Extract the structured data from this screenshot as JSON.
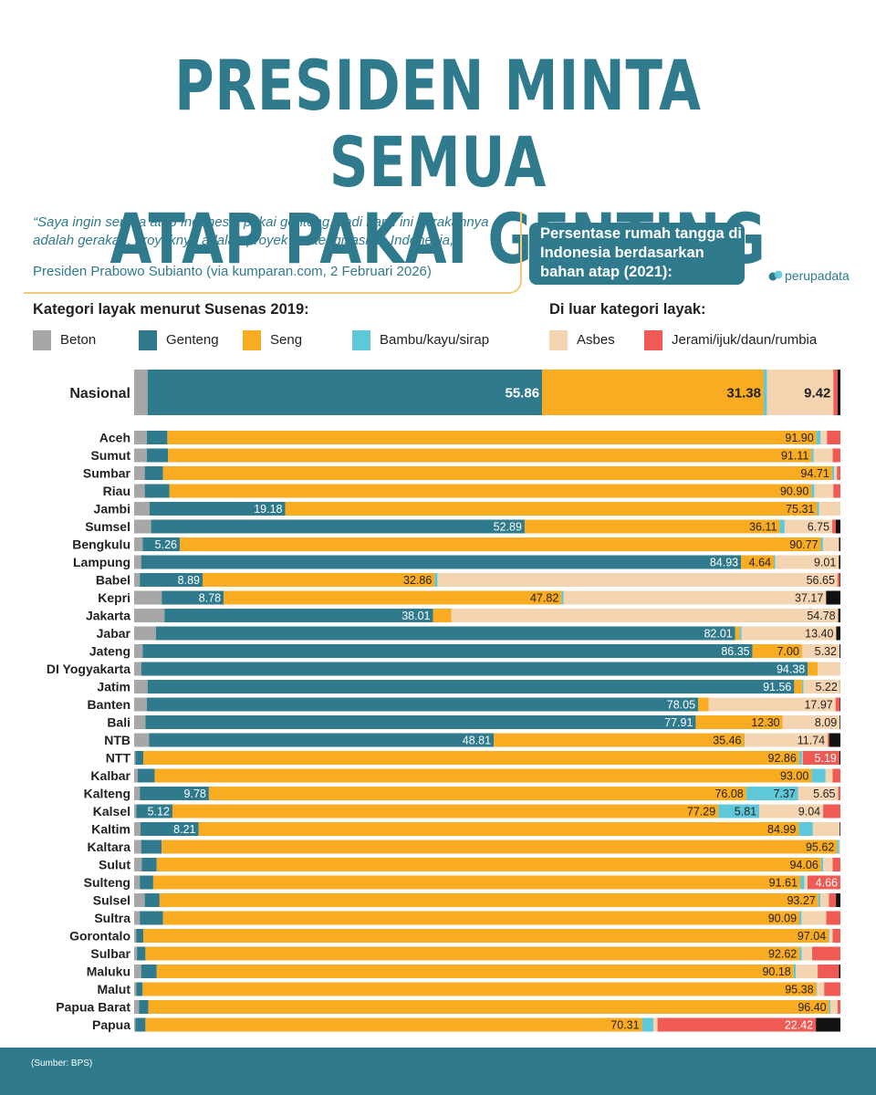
{
  "title_line1": "PRESIDEN MINTA SEMUA",
  "title_line2": "ATAP PAKAI GENTING",
  "quote": "“Saya ingin semua atap Indonesia pakai genteng. Jadi nanti ini gerakannya adalah gerakan, proyeknya adalah proyek gentengisasi ke Indonesia,”",
  "cite": "Presiden Prabowo Subianto (via kumparan.com, 2 Februari 2026)",
  "subtitle": "Persentase rumah tangga di Indonesia berdasarkan bahan atap (2021):",
  "logo": "perupadata",
  "source": "(Sumber: BPS)",
  "legend": {
    "layak_title": "Kategori layak menurut Susenas 2019:",
    "luar_title": "Di luar kategori layak:"
  },
  "colors": {
    "beton": "#a7a7a7",
    "genteng": "#2f7a8c",
    "seng": "#f9ab21",
    "bambu": "#5ec8d8",
    "asbes": "#f5d5b1",
    "jerami": "#ef5a55",
    "lainnya": "#111111",
    "brand": "#2f7a8c"
  },
  "chart_data": {
    "type": "bar",
    "stacked": true,
    "orientation": "horizontal",
    "title": "Persentase rumah tangga di Indonesia berdasarkan bahan atap (2021)",
    "xlim": [
      0,
      100
    ],
    "legend_position": "top",
    "series": [
      {
        "key": "beton",
        "name": "Beton"
      },
      {
        "key": "genteng",
        "name": "Genteng"
      },
      {
        "key": "seng",
        "name": "Seng"
      },
      {
        "key": "bambu",
        "name": "Bambu/kayu/sirap"
      },
      {
        "key": "asbes",
        "name": "Asbes"
      },
      {
        "key": "jerami",
        "name": "Jerami/ijuk/daun/rumbia"
      },
      {
        "key": "lainnya",
        "name": ""
      }
    ],
    "national": {
      "name": "Nasional",
      "values": [
        1.9,
        55.86,
        31.38,
        0.45,
        9.42,
        0.6,
        0.39
      ],
      "labels": [
        "",
        "55.86",
        "31.38",
        "",
        "9.42",
        "",
        ""
      ]
    },
    "provinces": [
      {
        "name": "Aceh",
        "values": [
          1.8,
          2.9,
          91.9,
          0.6,
          0.9,
          1.9,
          0
        ],
        "labels": [
          "",
          "",
          "91.90",
          "",
          "",
          "",
          ""
        ]
      },
      {
        "name": "Sumut",
        "values": [
          1.8,
          3.0,
          91.11,
          0.3,
          2.7,
          1.09,
          0
        ],
        "labels": [
          "",
          "",
          "91.11",
          "",
          "",
          "",
          ""
        ]
      },
      {
        "name": "Sumbar",
        "values": [
          1.5,
          2.6,
          94.71,
          0.3,
          0.4,
          0.49,
          0
        ],
        "labels": [
          "",
          "",
          "94.71",
          "",
          "",
          "",
          ""
        ]
      },
      {
        "name": "Riau",
        "values": [
          1.5,
          3.5,
          90.9,
          0.4,
          2.7,
          1.0,
          0
        ],
        "labels": [
          "",
          "",
          "90.90",
          "",
          "",
          "",
          ""
        ]
      },
      {
        "name": "Jambi",
        "values": [
          2.2,
          19.18,
          75.31,
          0.3,
          3.01,
          0,
          0
        ],
        "labels": [
          "",
          "19.18",
          "75.31",
          "",
          "",
          "",
          ""
        ]
      },
      {
        "name": "Sumsel",
        "values": [
          2.4,
          52.89,
          36.11,
          0.7,
          6.75,
          0.5,
          0.65
        ],
        "labels": [
          "",
          "52.89",
          "36.11",
          "",
          "6.75",
          "",
          ""
        ]
      },
      {
        "name": "Bengkulu",
        "values": [
          1.2,
          5.26,
          90.77,
          0.3,
          2.27,
          0,
          0.2
        ],
        "labels": [
          "",
          "5.26",
          "90.77",
          "",
          "",
          "",
          ""
        ]
      },
      {
        "name": "Lampung",
        "values": [
          1.0,
          84.93,
          4.64,
          0.2,
          9.01,
          0,
          0.22
        ],
        "labels": [
          "",
          "84.93",
          "4.64",
          "",
          "9.01",
          "",
          ""
        ]
      },
      {
        "name": "Babel",
        "values": [
          0.8,
          8.89,
          32.86,
          0.4,
          56.65,
          0.3,
          0.1
        ],
        "labels": [
          "",
          "8.89",
          "32.86",
          "",
          "56.65",
          "",
          ""
        ]
      },
      {
        "name": "Kepri",
        "values": [
          3.9,
          8.78,
          47.82,
          0.3,
          37.17,
          0,
          2.03
        ],
        "labels": [
          "",
          "8.78",
          "47.82",
          "",
          "37.17",
          "",
          ""
        ]
      },
      {
        "name": "Jakarta",
        "values": [
          4.3,
          38.01,
          2.6,
          0,
          54.78,
          0,
          0.31
        ],
        "labels": [
          "",
          "38.01",
          "",
          "",
          "54.78",
          "",
          ""
        ]
      },
      {
        "name": "Jabar",
        "values": [
          3.1,
          82.01,
          0.6,
          0.3,
          13.4,
          0,
          0.59
        ],
        "labels": [
          "",
          "82.01",
          "",
          "",
          "13.40",
          "",
          ""
        ]
      },
      {
        "name": "Jateng",
        "values": [
          1.2,
          86.35,
          7.0,
          0,
          5.32,
          0,
          0.13
        ],
        "labels": [
          "",
          "86.35",
          "7.00",
          "",
          "5.32",
          "",
          ""
        ]
      },
      {
        "name": "DI Yogyakarta",
        "values": [
          1.0,
          94.38,
          1.4,
          0,
          3.22,
          0,
          0
        ],
        "labels": [
          "",
          "94.38",
          "",
          "",
          "",
          "",
          ""
        ]
      },
      {
        "name": "Jatim",
        "values": [
          1.9,
          91.56,
          1.1,
          0.2,
          5.22,
          0,
          0.02
        ],
        "labels": [
          "",
          "91.56",
          "",
          "",
          "5.22",
          "",
          ""
        ]
      },
      {
        "name": "Banten",
        "values": [
          1.8,
          78.05,
          1.5,
          0,
          17.97,
          0.6,
          0.08
        ],
        "labels": [
          "",
          "78.05",
          "",
          "",
          "17.97",
          "",
          ""
        ]
      },
      {
        "name": "Bali",
        "values": [
          1.6,
          77.91,
          12.3,
          0,
          8.09,
          0,
          0.1
        ],
        "labels": [
          "",
          "77.91",
          "12.30",
          "",
          "8.09",
          "",
          ""
        ]
      },
      {
        "name": "NTB",
        "values": [
          2.1,
          48.81,
          35.46,
          0.1,
          11.74,
          0.2,
          1.59
        ],
        "labels": [
          "",
          "48.81",
          "35.46",
          "",
          "11.74",
          "",
          ""
        ]
      },
      {
        "name": "NTT",
        "values": [
          0.2,
          1.1,
          92.86,
          0.4,
          0.1,
          5.19,
          0.15
        ],
        "labels": [
          "",
          "",
          "92.86",
          "",
          "",
          "5.19",
          ""
        ]
      },
      {
        "name": "Kalbar",
        "values": [
          0.5,
          2.4,
          93.0,
          2.0,
          1.0,
          1.1,
          0
        ],
        "labels": [
          "",
          "",
          "93.00",
          "",
          "",
          "",
          ""
        ]
      },
      {
        "name": "Kalteng",
        "values": [
          0.8,
          9.78,
          76.08,
          7.37,
          5.65,
          0.3,
          0.02
        ],
        "labels": [
          "",
          "9.78",
          "76.08",
          "7.37",
          "5.65",
          "",
          ""
        ]
      },
      {
        "name": "Kalsel",
        "values": [
          0.3,
          5.12,
          77.29,
          5.81,
          9.04,
          2.44,
          0
        ],
        "labels": [
          "",
          "5.12",
          "77.29",
          "5.81",
          "9.04",
          "",
          ""
        ]
      },
      {
        "name": "Kaltim",
        "values": [
          0.9,
          8.21,
          84.99,
          2.0,
          3.8,
          0,
          0.1
        ],
        "labels": [
          "",
          "8.21",
          "84.99",
          "",
          "",
          "",
          ""
        ]
      },
      {
        "name": "Kaltara",
        "values": [
          1.0,
          2.9,
          95.62,
          0.3,
          0.18,
          0,
          0
        ],
        "labels": [
          "",
          "",
          "95.62",
          "",
          "",
          "",
          ""
        ]
      },
      {
        "name": "Sulut",
        "values": [
          1.1,
          2.1,
          94.06,
          0.3,
          1.34,
          1.1,
          0
        ],
        "labels": [
          "",
          "",
          "94.06",
          "",
          "",
          "",
          ""
        ]
      },
      {
        "name": "Sulteng",
        "values": [
          0.8,
          1.9,
          91.61,
          0.6,
          0.43,
          4.66,
          0
        ],
        "labels": [
          "",
          "",
          "91.61",
          "",
          "",
          "4.66",
          ""
        ]
      },
      {
        "name": "Sulsel",
        "values": [
          1.5,
          2.1,
          93.27,
          0.3,
          1.2,
          1.0,
          0.63
        ],
        "labels": [
          "",
          "",
          "93.27",
          "",
          "",
          "",
          ""
        ]
      },
      {
        "name": "Sultra",
        "values": [
          0.8,
          3.3,
          90.09,
          0.3,
          3.51,
          2.0,
          0
        ],
        "labels": [
          "",
          "",
          "90.09",
          "",
          "",
          "",
          ""
        ]
      },
      {
        "name": "Gorontalo",
        "values": [
          0.3,
          1.0,
          97.04,
          0.1,
          0.46,
          1.1,
          0
        ],
        "labels": [
          "",
          "",
          "97.04",
          "",
          "",
          "",
          ""
        ]
      },
      {
        "name": "Sulbar",
        "values": [
          0.4,
          1.2,
          92.62,
          0.3,
          1.48,
          4.0,
          0
        ],
        "labels": [
          "",
          "",
          "92.62",
          "",
          "",
          "",
          ""
        ]
      },
      {
        "name": "Maluku",
        "values": [
          1.0,
          2.2,
          90.18,
          0.3,
          3.1,
          3.02,
          0.2
        ],
        "labels": [
          "",
          "",
          "90.18",
          "",
          "",
          "",
          ""
        ]
      },
      {
        "name": "Malut",
        "values": [
          0.3,
          0.9,
          95.38,
          0.1,
          1.02,
          2.3,
          0
        ],
        "labels": [
          "",
          "",
          "95.38",
          "",
          "",
          "",
          ""
        ]
      },
      {
        "name": "Papua Barat",
        "values": [
          0.7,
          1.3,
          96.4,
          0.2,
          1.0,
          0.4,
          0
        ],
        "labels": [
          "",
          "",
          "96.40",
          "",
          "",
          "",
          ""
        ]
      },
      {
        "name": "Papua",
        "values": [
          0.2,
          1.4,
          70.31,
          1.6,
          0.6,
          22.42,
          3.47
        ],
        "labels": [
          "",
          "",
          "70.31",
          "",
          "",
          "22.42",
          ""
        ]
      }
    ]
  }
}
